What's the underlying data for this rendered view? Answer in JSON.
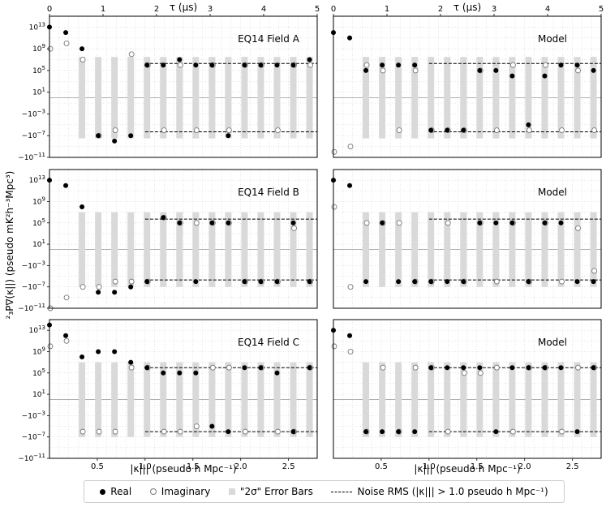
{
  "figure": {
    "ylabel": "²₃P∇(κ||) (pseudo mK²h⁻³Mpc³)",
    "xlabel": "|κ||| (pseudo h Mpc⁻¹)",
    "top_axis_label": "τ (μs)",
    "legend": {
      "real": "Real",
      "imaginary": "Imaginary",
      "error_bars": "\"2σ\" Error Bars",
      "noise_rms": "Noise RMS (|κ||| > 1.0 pseudo h Mpc⁻¹)"
    },
    "colors": {
      "real": "#000000",
      "imaginary": "#777777",
      "error_bar": "#d9d9d9",
      "zero_line": "#7a9cc6",
      "noise_line": "#000000",
      "grid": "#cccccc"
    }
  },
  "chart_data": [
    {
      "type": "scatter",
      "title": "EQ14 Field A",
      "panel": "top-left",
      "x": [
        0.0,
        0.17,
        0.34,
        0.51,
        0.68,
        0.85,
        1.02,
        1.19,
        1.36,
        1.53,
        1.7,
        1.87,
        2.04,
        2.21,
        2.38,
        2.55,
        2.72
      ],
      "real_exp": [
        13,
        12,
        9,
        -7,
        -8,
        -7,
        6,
        6,
        7,
        6,
        6,
        -7,
        6,
        6,
        6,
        6,
        7
      ],
      "real_sign": [
        1,
        1,
        1,
        -1,
        -1,
        -1,
        1,
        1,
        1,
        1,
        1,
        -1,
        1,
        1,
        1,
        1,
        1
      ],
      "imag_exp": [
        9,
        10,
        7,
        -7,
        -6,
        8,
        6,
        -6,
        6,
        -6,
        6,
        -6,
        6,
        6,
        -6,
        6,
        6
      ],
      "imag_sign": [
        1,
        1,
        1,
        -1,
        -1,
        1,
        1,
        -1,
        1,
        -1,
        1,
        -1,
        1,
        1,
        -1,
        1,
        1
      ],
      "noise_rms_exp": 6.3,
      "error_bar_exp": 7.5,
      "xlim": [
        0,
        2.8
      ],
      "ylim_exp": [
        -11,
        15
      ],
      "top_axis_ticks": [
        0,
        1,
        2,
        3,
        4,
        5
      ]
    },
    {
      "type": "scatter",
      "title": "Model",
      "panel": "top-right",
      "x": [
        0.0,
        0.17,
        0.34,
        0.51,
        0.68,
        0.85,
        1.02,
        1.19,
        1.36,
        1.53,
        1.7,
        1.87,
        2.04,
        2.21,
        2.38,
        2.55,
        2.72
      ],
      "real_exp": [
        12,
        11,
        5,
        6,
        6,
        6,
        -6,
        -6,
        -6,
        5,
        5,
        4,
        -5,
        4,
        6,
        6,
        5
      ],
      "real_sign": [
        1,
        1,
        1,
        1,
        1,
        1,
        -1,
        -1,
        -1,
        1,
        1,
        1,
        -1,
        1,
        1,
        1,
        1
      ],
      "imag_exp": [
        -10,
        -9,
        6,
        5,
        -6,
        5,
        -6,
        -6,
        -6,
        5,
        -6,
        6,
        -6,
        6,
        -6,
        5,
        -6
      ],
      "imag_sign": [
        -1,
        -1,
        1,
        1,
        -1,
        1,
        -1,
        -1,
        -1,
        1,
        -1,
        1,
        -1,
        1,
        -1,
        1,
        -1
      ],
      "noise_rms_exp": 6.3,
      "error_bar_exp": 7.5,
      "xlim": [
        0,
        2.8
      ],
      "ylim_exp": [
        -11,
        15
      ],
      "top_axis_ticks": [
        0,
        1,
        2,
        3,
        4,
        5
      ]
    },
    {
      "type": "scatter",
      "title": "EQ14 Field B",
      "panel": "middle-left",
      "x": [
        0.0,
        0.17,
        0.34,
        0.51,
        0.68,
        0.85,
        1.02,
        1.19,
        1.36,
        1.53,
        1.7,
        1.87,
        2.04,
        2.21,
        2.38,
        2.55,
        2.72
      ],
      "real_exp": [
        13,
        12,
        8,
        -8,
        -8,
        -7,
        -6,
        6,
        5,
        -6,
        5,
        5,
        -6,
        -6,
        -6,
        5,
        -6
      ],
      "real_sign": [
        1,
        1,
        1,
        -1,
        -1,
        -1,
        -1,
        1,
        1,
        -1,
        1,
        1,
        -1,
        -1,
        -1,
        1,
        -1
      ],
      "imag_exp": [
        -11,
        -9,
        -7,
        -7,
        -6,
        -6,
        -6,
        6,
        5,
        5,
        5,
        5,
        -6,
        -6,
        -6,
        4,
        -6
      ],
      "imag_sign": [
        -1,
        -1,
        -1,
        -1,
        -1,
        -1,
        -1,
        1,
        1,
        1,
        1,
        1,
        -1,
        -1,
        -1,
        1,
        -1
      ],
      "noise_rms_exp": 5.7,
      "error_bar_exp": 7.0,
      "xlim": [
        0,
        2.8
      ],
      "ylim_exp": [
        -11,
        15
      ]
    },
    {
      "type": "scatter",
      "title": "Model",
      "panel": "middle-right",
      "x": [
        0.0,
        0.17,
        0.34,
        0.51,
        0.68,
        0.85,
        1.02,
        1.19,
        1.36,
        1.53,
        1.7,
        1.87,
        2.04,
        2.21,
        2.38,
        2.55,
        2.72
      ],
      "real_exp": [
        13,
        12,
        -6,
        5,
        -6,
        -6,
        -6,
        -6,
        -6,
        5,
        5,
        5,
        -6,
        5,
        5,
        -6,
        -6
      ],
      "real_sign": [
        1,
        1,
        -1,
        1,
        -1,
        -1,
        -1,
        -1,
        -1,
        1,
        1,
        1,
        -1,
        1,
        1,
        -1,
        -1
      ],
      "imag_exp": [
        8,
        -7,
        5,
        5,
        5,
        -6,
        -6,
        5,
        -6,
        5,
        -6,
        5,
        -6,
        5,
        -6,
        4,
        -4
      ],
      "imag_sign": [
        1,
        -1,
        1,
        1,
        1,
        -1,
        -1,
        1,
        -1,
        1,
        -1,
        1,
        -1,
        1,
        -1,
        1,
        -1
      ],
      "noise_rms_exp": 5.7,
      "error_bar_exp": 7.0,
      "xlim": [
        0,
        2.8
      ],
      "ylim_exp": [
        -11,
        15
      ]
    },
    {
      "type": "scatter",
      "title": "EQ14 Field C",
      "panel": "bottom-left",
      "x": [
        0.0,
        0.17,
        0.34,
        0.51,
        0.68,
        0.85,
        1.02,
        1.19,
        1.36,
        1.53,
        1.7,
        1.87,
        2.04,
        2.21,
        2.38,
        2.55,
        2.72
      ],
      "real_exp": [
        14,
        12,
        8,
        9,
        9,
        7,
        6,
        5,
        5,
        5,
        -5,
        -6,
        6,
        6,
        5,
        -6,
        6
      ],
      "real_sign": [
        1,
        1,
        1,
        1,
        1,
        1,
        1,
        1,
        1,
        1,
        -1,
        -1,
        1,
        1,
        1,
        -1,
        1
      ],
      "imag_exp": [
        10,
        11,
        -6,
        -6,
        -6,
        6,
        6,
        -6,
        -6,
        -5,
        6,
        6,
        -6,
        6,
        -6,
        -6,
        6
      ],
      "imag_sign": [
        1,
        1,
        -1,
        -1,
        -1,
        1,
        1,
        -1,
        -1,
        -1,
        1,
        1,
        -1,
        1,
        -1,
        -1,
        1
      ],
      "noise_rms_exp": 6.0,
      "error_bar_exp": 7.0,
      "xlim": [
        0,
        2.8
      ],
      "ylim_exp": [
        -11,
        15
      ],
      "x_ticks": [
        0.5,
        1.0,
        1.5,
        2.0,
        2.5
      ]
    },
    {
      "type": "scatter",
      "title": "Model",
      "panel": "bottom-right",
      "x": [
        0.0,
        0.17,
        0.34,
        0.51,
        0.68,
        0.85,
        1.02,
        1.19,
        1.36,
        1.53,
        1.7,
        1.87,
        2.04,
        2.21,
        2.38,
        2.55,
        2.72
      ],
      "real_exp": [
        13,
        12,
        -6,
        -6,
        -6,
        -6,
        6,
        6,
        6,
        6,
        -6,
        6,
        6,
        6,
        6,
        -6,
        6
      ],
      "real_sign": [
        1,
        1,
        -1,
        -1,
        -1,
        -1,
        1,
        1,
        1,
        1,
        -1,
        1,
        1,
        1,
        1,
        -1,
        1
      ],
      "imag_exp": [
        10,
        9,
        -6,
        6,
        -6,
        6,
        6,
        -6,
        5,
        5,
        6,
        -6,
        6,
        6,
        -6,
        6,
        6
      ],
      "imag_sign": [
        1,
        1,
        -1,
        1,
        -1,
        1,
        1,
        -1,
        1,
        1,
        1,
        -1,
        1,
        1,
        -1,
        1,
        1
      ],
      "noise_rms_exp": 6.0,
      "error_bar_exp": 7.0,
      "xlim": [
        0,
        2.8
      ],
      "ylim_exp": [
        -11,
        15
      ],
      "x_ticks": [
        0.5,
        1.0,
        1.5,
        2.0,
        2.5
      ]
    }
  ]
}
